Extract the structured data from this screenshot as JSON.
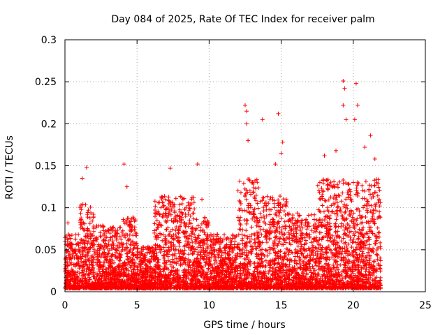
{
  "chart_data": {
    "type": "scatter",
    "title": "Day 084 of 2025, Rate Of TEC Index for receiver palm",
    "xlabel": "GPS time / hours",
    "ylabel": "ROTI / TECUs",
    "xlim": [
      0,
      25
    ],
    "ylim": [
      0,
      0.3
    ],
    "x_ticks": [
      0,
      5,
      10,
      15,
      20,
      25
    ],
    "x_tick_labels": [
      "0",
      "5",
      "10",
      "15",
      "20",
      "25"
    ],
    "y_ticks": [
      0,
      0.05,
      0.1,
      0.15,
      0.2,
      0.25,
      0.3
    ],
    "y_tick_labels": [
      "0",
      "0.05",
      "0.1",
      "0.15",
      "0.2",
      "0.25",
      "0.3"
    ],
    "grid": true,
    "marker": "plus",
    "color": "#ff0000",
    "series": [
      {
        "name": "ROTI",
        "notable_points": [
          {
            "x": 0.2,
            "y": 0.082
          },
          {
            "x": 1.2,
            "y": 0.135
          },
          {
            "x": 1.5,
            "y": 0.148
          },
          {
            "x": 4.1,
            "y": 0.152
          },
          {
            "x": 4.3,
            "y": 0.125
          },
          {
            "x": 7.3,
            "y": 0.147
          },
          {
            "x": 9.2,
            "y": 0.152
          },
          {
            "x": 9.5,
            "y": 0.11
          },
          {
            "x": 12.5,
            "y": 0.222
          },
          {
            "x": 12.6,
            "y": 0.215
          },
          {
            "x": 12.6,
            "y": 0.2
          },
          {
            "x": 12.7,
            "y": 0.18
          },
          {
            "x": 13.7,
            "y": 0.205
          },
          {
            "x": 14.8,
            "y": 0.212
          },
          {
            "x": 15.1,
            "y": 0.178
          },
          {
            "x": 15.0,
            "y": 0.165
          },
          {
            "x": 14.6,
            "y": 0.152
          },
          {
            "x": 19.3,
            "y": 0.251
          },
          {
            "x": 19.4,
            "y": 0.242
          },
          {
            "x": 19.3,
            "y": 0.222
          },
          {
            "x": 19.5,
            "y": 0.205
          },
          {
            "x": 20.2,
            "y": 0.248
          },
          {
            "x": 20.3,
            "y": 0.222
          },
          {
            "x": 20.1,
            "y": 0.205
          },
          {
            "x": 21.2,
            "y": 0.186
          },
          {
            "x": 20.8,
            "y": 0.172
          },
          {
            "x": 18.0,
            "y": 0.162
          },
          {
            "x": 18.8,
            "y": 0.168
          },
          {
            "x": 21.5,
            "y": 0.158
          },
          {
            "x": 21.8,
            "y": 0.065
          }
        ],
        "bulk_segments": [
          {
            "x_range": [
              0,
              1
            ],
            "y_max": 0.065
          },
          {
            "x_range": [
              1,
              2
            ],
            "y_max": 0.1
          },
          {
            "x_range": [
              2,
              4
            ],
            "y_max": 0.075
          },
          {
            "x_range": [
              4,
              5
            ],
            "y_max": 0.085
          },
          {
            "x_range": [
              5,
              6.2
            ],
            "y_max": 0.05
          },
          {
            "x_range": [
              6.2,
              9
            ],
            "y_max": 0.11
          },
          {
            "x_range": [
              9,
              10
            ],
            "y_max": 0.085
          },
          {
            "x_range": [
              10,
              12
            ],
            "y_max": 0.065
          },
          {
            "x_range": [
              12,
              13.5
            ],
            "y_max": 0.13
          },
          {
            "x_range": [
              13.5,
              15.5
            ],
            "y_max": 0.11
          },
          {
            "x_range": [
              15.5,
              17.5
            ],
            "y_max": 0.09
          },
          {
            "x_range": [
              17.5,
              21.9
            ],
            "y_max": 0.13
          }
        ]
      }
    ]
  }
}
